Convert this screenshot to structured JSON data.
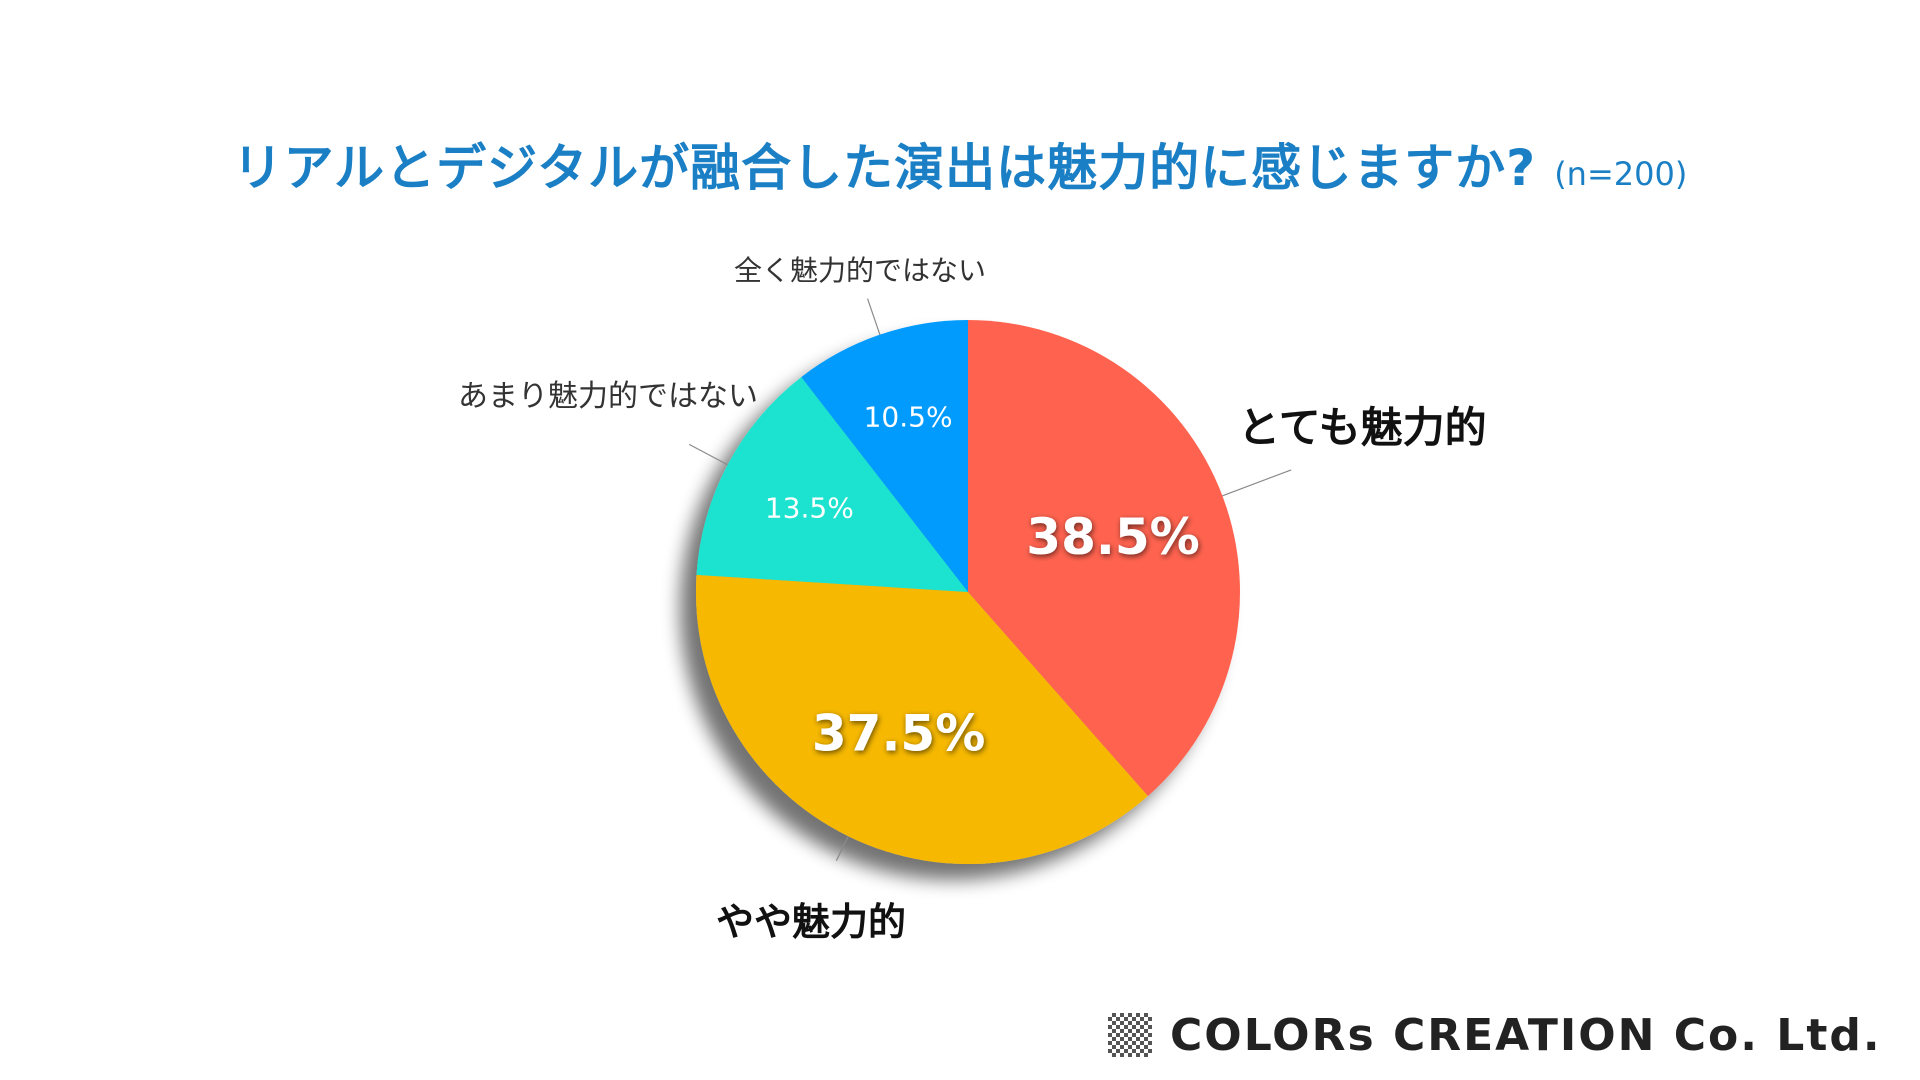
{
  "title": "リアルとデジタルが融合した演出は魅力的に感じますか?",
  "sample_size": "(n=200)",
  "footer": {
    "company": "COLORs CREATION Co. Ltd."
  },
  "chart_data": {
    "type": "pie",
    "title": "リアルとデジタルが融合した演出は魅力的に感じますか?",
    "slices": [
      {
        "label": "とても魅力的",
        "value": 38.5,
        "value_label": "38.5%",
        "color": "#ff6450"
      },
      {
        "label": "やや魅力的",
        "value": 37.5,
        "value_label": "37.5%",
        "color": "#f6b802"
      },
      {
        "label": "あまり魅力的ではない",
        "value": 13.5,
        "value_label": "13.5%",
        "color": "#1ce3cf"
      },
      {
        "label": "全く魅力的ではない",
        "value": 10.5,
        "value_label": "10.5%",
        "color": "#069bfc"
      }
    ],
    "start": "12 o'clock",
    "direction": "clockwise"
  }
}
